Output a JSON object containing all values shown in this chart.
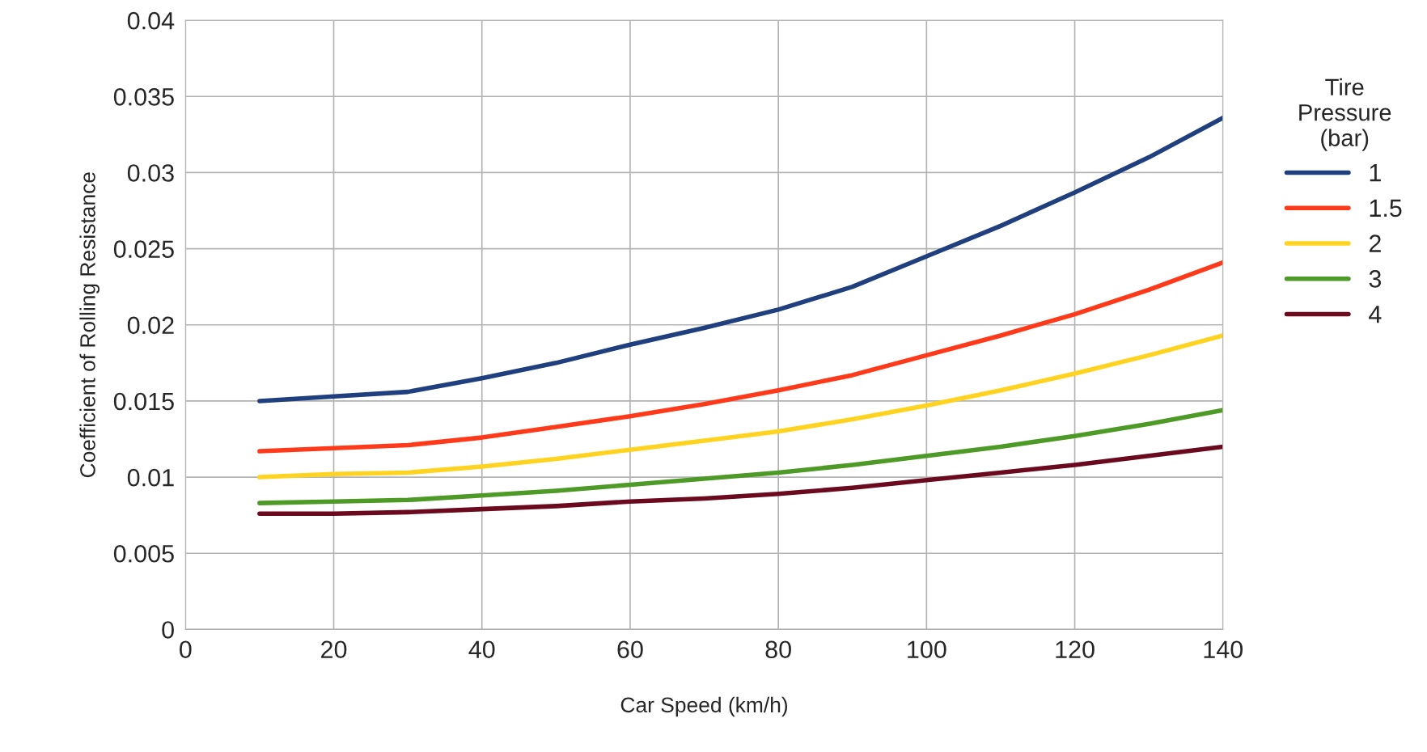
{
  "chart_data": {
    "type": "line",
    "xlabel": "Car Speed (km/h)",
    "ylabel": "Coefficient of Rolling Resistance",
    "legend_title": "Tire\nPressure\n(bar)",
    "x": [
      10,
      20,
      30,
      40,
      50,
      60,
      70,
      80,
      90,
      100,
      110,
      120,
      130,
      140
    ],
    "series": [
      {
        "name": "1",
        "color": "#1f3f7f",
        "values": [
          0.015,
          0.0153,
          0.0156,
          0.0165,
          0.0175,
          0.0187,
          0.0198,
          0.021,
          0.0225,
          0.0245,
          0.0265,
          0.0287,
          0.031,
          0.0336
        ]
      },
      {
        "name": "1.5",
        "color": "#ff3a1a",
        "values": [
          0.0117,
          0.0119,
          0.0121,
          0.0126,
          0.0133,
          0.014,
          0.0148,
          0.0157,
          0.0167,
          0.018,
          0.0193,
          0.0207,
          0.0223,
          0.0241
        ]
      },
      {
        "name": "2",
        "color": "#ffd320",
        "values": [
          0.01,
          0.0102,
          0.0103,
          0.0107,
          0.0112,
          0.0118,
          0.0124,
          0.013,
          0.0138,
          0.0147,
          0.0157,
          0.0168,
          0.018,
          0.0193
        ]
      },
      {
        "name": "3",
        "color": "#4e9a26",
        "values": [
          0.0083,
          0.0084,
          0.0085,
          0.0088,
          0.0091,
          0.0095,
          0.0099,
          0.0103,
          0.0108,
          0.0114,
          0.012,
          0.0127,
          0.0135,
          0.0144
        ]
      },
      {
        "name": "4",
        "color": "#6b0a1e",
        "values": [
          0.0076,
          0.0076,
          0.0077,
          0.0079,
          0.0081,
          0.0084,
          0.0086,
          0.0089,
          0.0093,
          0.0098,
          0.0103,
          0.0108,
          0.0114,
          0.012
        ]
      }
    ],
    "xlim": [
      0,
      140
    ],
    "xticks": [
      0,
      20,
      40,
      60,
      80,
      100,
      120,
      140
    ],
    "ylim": [
      0,
      0.04
    ],
    "yticks": [
      0,
      0.005,
      0.01,
      0.015,
      0.02,
      0.025,
      0.03,
      0.035,
      0.04
    ],
    "grid": true,
    "legend": "right"
  }
}
